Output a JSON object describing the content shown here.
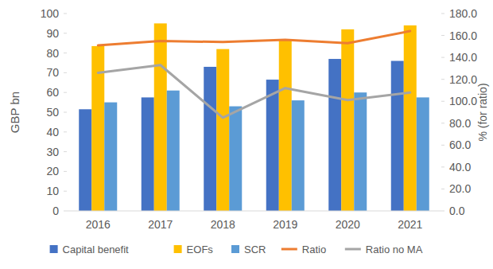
{
  "chart_data": {
    "type": "bar",
    "y_label": "GBP bn",
    "y2_label": "% (for ratio)",
    "categories": [
      "2016",
      "2017",
      "2018",
      "2019",
      "2020",
      "2021"
    ],
    "series": [
      {
        "name": "Capital benefit",
        "type": "bar",
        "color": "#4472c4",
        "values": [
          51.5,
          57.5,
          73,
          66.5,
          77,
          76
        ]
      },
      {
        "name": "EOFs",
        "type": "bar",
        "color": "#ffc000",
        "values": [
          83.5,
          95,
          82,
          87,
          92,
          94
        ]
      },
      {
        "name": "SCR",
        "type": "bar",
        "color": "#5b9bd5",
        "values": [
          55,
          61,
          53,
          56,
          60,
          57.5
        ]
      },
      {
        "name": "Ratio",
        "type": "line",
        "axis": "y2",
        "color": "#ed7d31",
        "values": [
          151,
          155,
          154,
          156,
          153,
          164
        ]
      },
      {
        "name": "Ratio no MA",
        "type": "line",
        "axis": "y2",
        "color": "#a5a5a5",
        "values": [
          126,
          133,
          85,
          112,
          101,
          108
        ]
      }
    ],
    "ylim": [
      0,
      100
    ],
    "yticks": [
      0,
      10,
      20,
      30,
      40,
      50,
      60,
      70,
      80,
      90,
      100
    ],
    "y2lim": [
      0,
      180
    ],
    "y2ticks": [
      {
        "value": 0,
        "label": "0.0"
      },
      {
        "value": 20,
        "label": "20.0"
      },
      {
        "value": 40,
        "label": "40.0"
      },
      {
        "value": 60,
        "label": "60.0"
      },
      {
        "value": 80,
        "label": "80.0"
      },
      {
        "value": 100,
        "label": "100.0"
      },
      {
        "value": 120,
        "label": "120.0"
      },
      {
        "value": 140,
        "label": "140.0"
      },
      {
        "value": 160,
        "label": "160.0"
      },
      {
        "value": 180,
        "label": "180.0"
      }
    ],
    "grid": false,
    "legend": "bottom"
  }
}
